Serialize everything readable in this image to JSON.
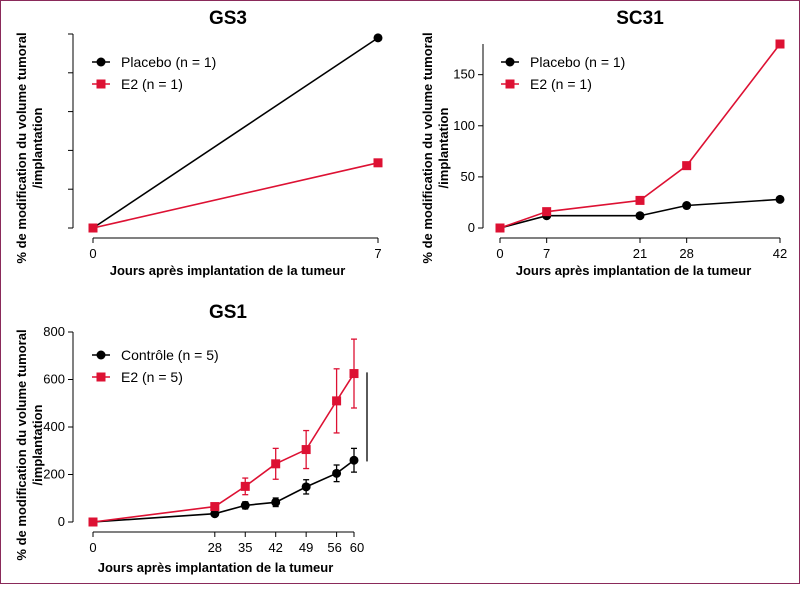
{
  "chart_data": [
    {
      "type": "line",
      "title": "GS3",
      "xlabel": "Jours après implantation de la tumeur",
      "ylabel_line1": "% de modification du volume tumoral",
      "ylabel_line2": "/implantation",
      "x": [
        0,
        7
      ],
      "x_ticks": [
        0,
        7
      ],
      "xlim": [
        0,
        7
      ],
      "y_tick_labels_shown": false,
      "ylim": [
        0,
        250
      ],
      "y_ticks": [
        0,
        50,
        100,
        150,
        200,
        250
      ],
      "legend_position": "top-left",
      "series": [
        {
          "name": "Placebo (n = 1)",
          "color": "#000000",
          "marker": "circle",
          "values": [
            0,
            245
          ]
        },
        {
          "name": "E2 (n = 1)",
          "color": "#dd1133",
          "marker": "square",
          "values": [
            0,
            84
          ]
        }
      ]
    },
    {
      "type": "line",
      "title": "SC31",
      "xlabel": "Jours après implantation de la tumeur",
      "ylabel_line1": "% de modification du volume tumoral",
      "ylabel_line2": "/implantation",
      "x": [
        0,
        7,
        21,
        28,
        42
      ],
      "x_ticks": [
        0,
        7,
        21,
        28,
        42
      ],
      "xlim": [
        0,
        42
      ],
      "y_ticks": [
        0,
        50,
        100,
        150
      ],
      "ylim": [
        0,
        180
      ],
      "legend_position": "top-left",
      "series": [
        {
          "name": "Placebo (n = 1)",
          "color": "#000000",
          "marker": "circle",
          "values": [
            0,
            12,
            12,
            22,
            28
          ]
        },
        {
          "name": "E2 (n = 1)",
          "color": "#dd1133",
          "marker": "square",
          "values": [
            0,
            16,
            27,
            61,
            180
          ]
        }
      ]
    },
    {
      "type": "line",
      "title": "GS1",
      "xlabel": "Jours après implantation de la tumeur",
      "ylabel_line1": "% de modification du volume tumoral",
      "ylabel_line2": "/implantation",
      "x": [
        0,
        28,
        35,
        42,
        49,
        56,
        60
      ],
      "x_ticks": [
        0,
        28,
        35,
        42,
        49,
        56,
        60
      ],
      "x_tick_labels": [
        "0",
        "28",
        "35",
        "42",
        "49",
        "56",
        "60"
      ],
      "xlim": [
        0,
        60
      ],
      "y_ticks": [
        0,
        200,
        400,
        600,
        800
      ],
      "ylim": [
        0,
        800
      ],
      "legend_position": "top-left",
      "series": [
        {
          "name": "Contrôle (n = 5)",
          "color": "#000000",
          "marker": "circle",
          "values": [
            0,
            35,
            70,
            83,
            148,
            205,
            260
          ],
          "errors": [
            0,
            0,
            15,
            18,
            30,
            35,
            50
          ]
        },
        {
          "name": "E2 (n = 5)",
          "color": "#dd1133",
          "marker": "square",
          "values": [
            0,
            65,
            150,
            245,
            305,
            510,
            625
          ],
          "errors": [
            0,
            0,
            35,
            65,
            80,
            135,
            145
          ]
        }
      ],
      "bracket_y_range": [
        255,
        630
      ]
    }
  ]
}
